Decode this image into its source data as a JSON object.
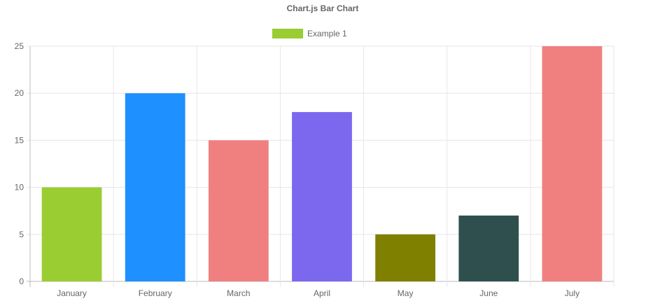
{
  "chart_data": {
    "type": "bar",
    "title": "Chart.js Bar Chart",
    "categories": [
      "January",
      "February",
      "March",
      "April",
      "May",
      "June",
      "July"
    ],
    "series": [
      {
        "name": "Example 1",
        "values": [
          10,
          20,
          15,
          18,
          5,
          7,
          25
        ],
        "colors": [
          "#9acd32",
          "#1e90ff",
          "#f08080",
          "#7b68ee",
          "#808000",
          "#2f4f4f",
          "#f08080"
        ]
      }
    ],
    "legend_color": "#9acd32",
    "legend_position": "top",
    "xlabel": "",
    "ylabel": "",
    "ylim": [
      0,
      25
    ],
    "yticks": [
      "0",
      "5",
      "10",
      "15",
      "20",
      "25"
    ],
    "grid": true
  }
}
